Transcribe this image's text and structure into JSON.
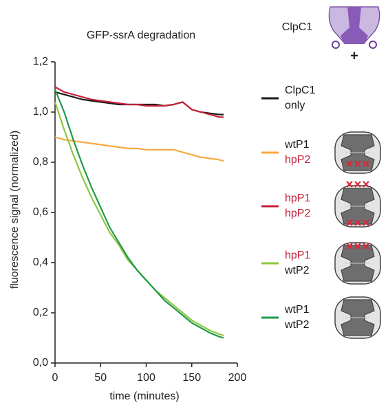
{
  "chart_data": {
    "type": "line",
    "title": "GFP-ssrA degradation",
    "xlabel": "time (minutes)",
    "ylabel": "fluorescence signal (normalized)",
    "annotations": [
      "ClpC1",
      "+"
    ],
    "xlim": [
      0,
      200
    ],
    "xticks": [
      0,
      50,
      100,
      150,
      200
    ],
    "ylim": [
      0,
      1.2
    ],
    "yticks": [
      {
        "value": 0,
        "label": "0,0"
      },
      {
        "value": 0.2,
        "label": "0,2"
      },
      {
        "value": 0.4,
        "label": "0,4"
      },
      {
        "value": 0.6,
        "label": "0,6"
      },
      {
        "value": 0.8,
        "label": "0,8"
      },
      {
        "value": 1.0,
        "label": "1,0"
      },
      {
        "value": 1.2,
        "label": "1,2"
      }
    ],
    "x": [
      0,
      10,
      20,
      30,
      40,
      50,
      60,
      70,
      80,
      90,
      100,
      110,
      120,
      130,
      140,
      150,
      160,
      170,
      180,
      185
    ],
    "series": [
      {
        "name": "ClpC1 only",
        "name_colors": [
          "#1a1a1a",
          "#1a1a1a"
        ],
        "color": "#1a1a1a",
        "values": [
          1.08,
          1.07,
          1.06,
          1.05,
          1.045,
          1.04,
          1.035,
          1.03,
          1.03,
          1.03,
          1.03,
          1.03,
          1.025,
          1.03,
          1.04,
          1.01,
          1.0,
          0.995,
          0.99,
          0.99
        ]
      },
      {
        "name": "wtP1 hpP2",
        "name_colors": [
          "#1a1a1a",
          "#c5203a"
        ],
        "color": "#f7a841",
        "values": [
          0.9,
          0.89,
          0.885,
          0.88,
          0.875,
          0.87,
          0.865,
          0.86,
          0.855,
          0.855,
          0.85,
          0.85,
          0.85,
          0.85,
          0.84,
          0.83,
          0.82,
          0.815,
          0.81,
          0.805
        ]
      },
      {
        "name": "hpP1 hpP2",
        "name_colors": [
          "#c5203a",
          "#c5203a"
        ],
        "color": "#c5203a",
        "values": [
          1.1,
          1.08,
          1.07,
          1.06,
          1.05,
          1.045,
          1.04,
          1.035,
          1.03,
          1.03,
          1.025,
          1.025,
          1.025,
          1.03,
          1.04,
          1.01,
          1.0,
          0.99,
          0.98,
          0.98
        ]
      },
      {
        "name": "hpP1 wtP2",
        "name_colors": [
          "#c5203a",
          "#1a1a1a"
        ],
        "color": "#8cc63f",
        "values": [
          1.04,
          0.93,
          0.83,
          0.74,
          0.66,
          0.59,
          0.52,
          0.47,
          0.41,
          0.37,
          0.33,
          0.29,
          0.26,
          0.23,
          0.2,
          0.17,
          0.15,
          0.13,
          0.115,
          0.11
        ]
      },
      {
        "name": "wtP1 wtP2",
        "name_colors": [
          "#1a1a1a",
          "#1a1a1a"
        ],
        "color": "#1f9a48",
        "values": [
          1.09,
          1.0,
          0.89,
          0.79,
          0.7,
          0.62,
          0.54,
          0.48,
          0.42,
          0.37,
          0.33,
          0.29,
          0.25,
          0.22,
          0.19,
          0.16,
          0.14,
          0.12,
          0.105,
          0.1
        ]
      }
    ]
  }
}
